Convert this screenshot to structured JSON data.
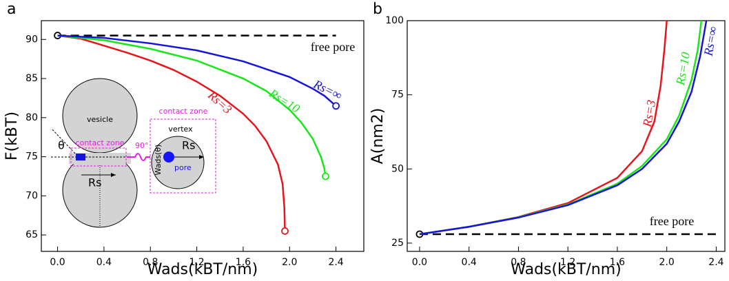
{
  "chart_data": [
    {
      "type": "line",
      "panel": "a",
      "x_label": "Wads(kBT/nm)",
      "y_label": "F(kBT)",
      "xlim": [
        -0.14,
        2.64
      ],
      "ylim": [
        62.9,
        92.4
      ],
      "xticks": [
        {
          "value": 0,
          "label": "0.0"
        },
        0.4,
        0.8,
        1.2,
        1.6,
        {
          "value": 2,
          "label": "2.0"
        },
        2.4
      ],
      "yticks": [
        65,
        70,
        75,
        80,
        85,
        90
      ],
      "series": [
        {
          "name": "free pore",
          "color": "#000000",
          "dashed": true,
          "start_marker": true,
          "x": [
            0,
            2.4
          ],
          "values": [
            90.5,
            90.5
          ]
        },
        {
          "name": "Rs=3",
          "color": "#e8141a",
          "end_marker": true,
          "x": [
            0,
            0.2,
            0.4,
            0.6,
            0.8,
            1.0,
            1.2,
            1.4,
            1.6,
            1.7,
            1.8,
            1.9,
            1.94,
            1.955,
            1.96
          ],
          "values": [
            90.5,
            90.1,
            89.2,
            88.3,
            87.3,
            86.1,
            84.6,
            82.8,
            80.5,
            79.0,
            77.0,
            74.0,
            71.5,
            68.5,
            65.5
          ]
        },
        {
          "name": "Rs=10",
          "color": "#19e619",
          "end_marker": true,
          "x": [
            0,
            0.4,
            0.8,
            1.2,
            1.6,
            1.8,
            2.0,
            2.1,
            2.2,
            2.27,
            2.3,
            2.31
          ],
          "values": [
            90.5,
            89.9,
            88.8,
            87.3,
            85.0,
            83.4,
            81.0,
            79.4,
            77.3,
            75.0,
            73.5,
            72.5
          ]
        },
        {
          "name": "Rs=∞",
          "color": "#1414dc",
          "end_marker": true,
          "x": [
            0,
            0.4,
            0.8,
            1.2,
            1.6,
            2.0,
            2.2,
            2.3,
            2.4
          ],
          "values": [
            90.5,
            90.2,
            89.5,
            88.6,
            87.2,
            85.2,
            83.7,
            82.8,
            81.5
          ]
        }
      ],
      "inset": {
        "vesicle": "vesicle",
        "contact_zone": "contact zone",
        "theta": "θ",
        "angle": "90°",
        "zone_title": "contact zone",
        "vertex": "vertex",
        "radius": "Rs",
        "wads": "Wads(θ)",
        "pore": "pore",
        "radius_big": "Rs"
      }
    },
    {
      "type": "line",
      "panel": "b",
      "x_label": "Wads(kBT/nm)",
      "y_label": "A(nm2)",
      "xlim": [
        -0.1,
        2.47
      ],
      "ylim": [
        22.2,
        100
      ],
      "xticks": [
        {
          "value": 0,
          "label": "0.0"
        },
        0.4,
        0.8,
        1.2,
        1.6,
        {
          "value": 2,
          "label": "2.0"
        },
        2.4
      ],
      "yticks": [
        25,
        50,
        75,
        100
      ],
      "series": [
        {
          "name": "free pore",
          "color": "#000000",
          "dashed": true,
          "start_marker": true,
          "x": [
            0,
            2.4
          ],
          "values": [
            28,
            28
          ]
        },
        {
          "name": "Rs=3",
          "color": "#e8141a",
          "x": [
            0,
            0.4,
            0.8,
            1.2,
            1.6,
            1.8,
            1.9,
            1.95,
            1.98,
            2.0
          ],
          "values": [
            28,
            30.5,
            33.8,
            38.5,
            47,
            56,
            66,
            78,
            90,
            100
          ]
        },
        {
          "name": "Rs=10",
          "color": "#19e619",
          "x": [
            0,
            0.4,
            0.8,
            1.2,
            1.6,
            1.8,
            2.0,
            2.1,
            2.2,
            2.25,
            2.28
          ],
          "values": [
            28,
            30.5,
            33.7,
            38,
            45,
            51,
            60,
            68,
            80,
            90,
            100
          ]
        },
        {
          "name": "Rs=∞",
          "color": "#1414dc",
          "x": [
            0,
            0.4,
            0.8,
            1.2,
            1.6,
            1.8,
            2.0,
            2.1,
            2.2,
            2.27,
            2.32
          ],
          "values": [
            28,
            30.5,
            33.6,
            37.8,
            44.5,
            50,
            58.5,
            66,
            76,
            88,
            100
          ]
        }
      ]
    }
  ]
}
